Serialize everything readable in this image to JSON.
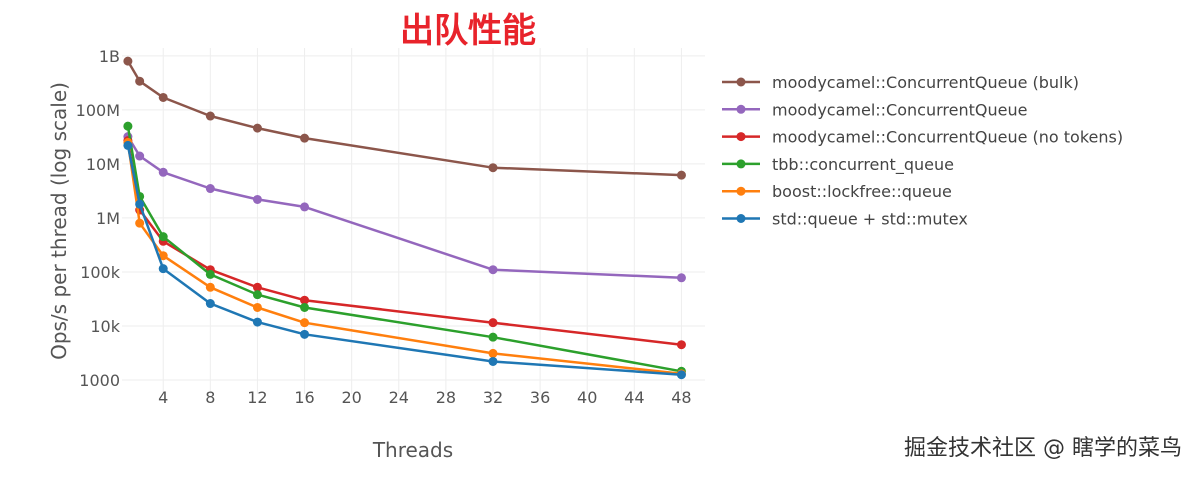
{
  "chart_data": {
    "type": "line",
    "title": "出队性能",
    "xlabel": "Threads",
    "ylabel": "Ops/s per thread (log scale)",
    "y_scale": "log",
    "xlim": [
      0.5,
      50
    ],
    "ylim": [
      550,
      1400000000
    ],
    "grid": true,
    "legend_position": "right",
    "x_ticks": [
      4,
      8,
      12,
      16,
      20,
      24,
      28,
      32,
      36,
      40,
      44,
      48
    ],
    "y_ticks": [
      {
        "value": 1000,
        "label": "1000"
      },
      {
        "value": 10000,
        "label": "10k"
      },
      {
        "value": 100000,
        "label": "100k"
      },
      {
        "value": 1000000,
        "label": "1M"
      },
      {
        "value": 10000000,
        "label": "10M"
      },
      {
        "value": 100000000,
        "label": "100M"
      },
      {
        "value": 1000000000,
        "label": "1B"
      }
    ],
    "x": [
      1,
      2,
      4,
      8,
      12,
      16,
      32,
      48
    ],
    "series": [
      {
        "name": "moodycamel::ConcurrentQueue (bulk)",
        "color": "#8c564b",
        "values": [
          800000000,
          340000000,
          170000000,
          77000000,
          46000000,
          30000000,
          8500000,
          6200000
        ]
      },
      {
        "name": "moodycamel::ConcurrentQueue",
        "color": "#9467bd",
        "values": [
          32000000,
          14000000,
          7000000,
          3500000,
          2200000,
          1600000,
          110000,
          78000
        ]
      },
      {
        "name": "moodycamel::ConcurrentQueue (no tokens)",
        "color": "#d62728",
        "values": [
          27000000,
          1400000,
          370000,
          110000,
          52000,
          30000,
          11500,
          4500
        ]
      },
      {
        "name": "tbb::concurrent_queue",
        "color": "#2ca02c",
        "values": [
          50000000,
          2500000,
          450000,
          90000,
          38000,
          22000,
          6200,
          1450
        ]
      },
      {
        "name": "boost::lockfree::queue",
        "color": "#ff7f0e",
        "values": [
          25000000,
          800000,
          200000,
          52000,
          22000,
          11500,
          3100,
          1300
        ]
      },
      {
        "name": "std::queue + std::mutex",
        "color": "#1f77b4",
        "values": [
          22000000,
          1800000,
          115000,
          26000,
          11800,
          7000,
          2200,
          1250
        ]
      }
    ]
  },
  "watermark": "掘金技术社区 @ 瞎学的菜鸟"
}
